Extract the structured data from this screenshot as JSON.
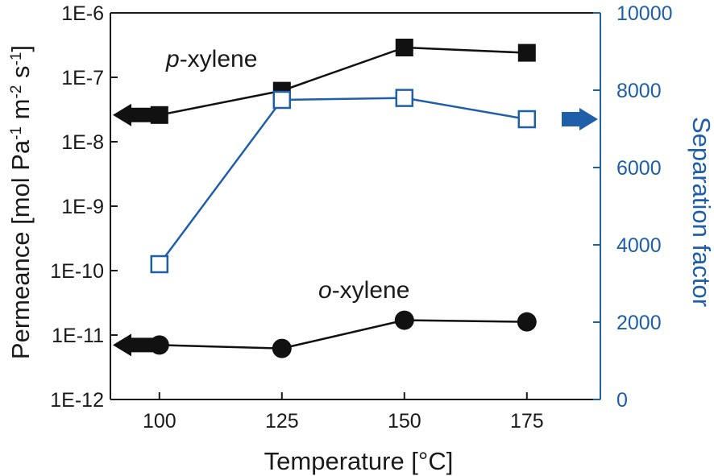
{
  "chart_data": {
    "type": "line",
    "x": [
      100,
      125,
      150,
      175
    ],
    "xlabel": "Temperature [°C]",
    "xlim": [
      90,
      190
    ],
    "xticks": [
      "100",
      "125",
      "150",
      "175"
    ],
    "ylabel_left": {
      "base": "Permeance [mol Pa",
      "sup1": "-1",
      "mid1": " m",
      "sup2": "-2",
      "mid2": " s",
      "sup3": "-1",
      "end": "]"
    },
    "ylabel_right": "Separation factor",
    "y_left_scale": "log",
    "y_left_lim": [
      1e-12,
      1e-06
    ],
    "y_left_ticks": [
      "1E-12",
      "1E-11",
      "1E-10",
      "1E-9",
      "1E-8",
      "1E-7",
      "1E-6"
    ],
    "y_right_lim": [
      0,
      10000
    ],
    "y_right_ticks": [
      "0",
      "2000",
      "4000",
      "6000",
      "8000",
      "10000"
    ],
    "grid": false,
    "series": [
      {
        "label_italic": "p",
        "label_rest": "-xylene",
        "axis": "left",
        "marker": "filled-square",
        "color": "#111111",
        "values": [
          2.6e-08,
          6.2e-08,
          2.9e-07,
          2.4e-07
        ]
      },
      {
        "label_italic": "o",
        "label_rest": "-xylene",
        "axis": "left",
        "marker": "filled-circle",
        "color": "#111111",
        "values": [
          7e-12,
          6.2e-12,
          1.7e-11,
          1.6e-11
        ]
      },
      {
        "axis": "right",
        "marker": "open-square",
        "color": "#1f5ea8",
        "values": [
          3500,
          7750,
          7800,
          7250
        ]
      }
    ],
    "axis_arrows": [
      {
        "points_to": "left",
        "series_index": 0,
        "color": "#111111"
      },
      {
        "points_to": "left",
        "series_index": 1,
        "color": "#111111"
      },
      {
        "points_to": "right",
        "series_index": 2,
        "color": "#1f5ea8"
      }
    ]
  }
}
